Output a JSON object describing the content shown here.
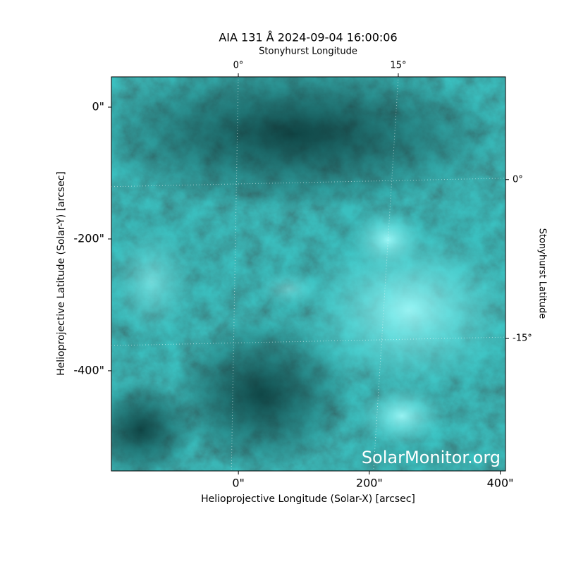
{
  "chart_data": {
    "type": "image",
    "title": "AIA 131 Å 2024-09-04 16:00:06",
    "x_label": "Helioprojective Longitude (Solar-X) [arcsec]",
    "y_label": "Helioprojective Latitude (Solar-Y) [arcsec]",
    "x2_label": "Stonyhurst Longitude",
    "y2_label": "Stonyhurst Latitude",
    "watermark": "SolarMonitor.org",
    "xlim": [
      -194,
      408
    ],
    "ylim": [
      -552,
      46
    ],
    "xticks": [
      {
        "value": 0,
        "label": "0\""
      },
      {
        "value": 200,
        "label": "200\""
      },
      {
        "value": 400,
        "label": "400\""
      }
    ],
    "yticks": [
      {
        "value": 0,
        "label": "0\""
      },
      {
        "value": -200,
        "label": "-200\""
      },
      {
        "value": -400,
        "label": "-400\""
      }
    ],
    "x2lim": [
      -11.9,
      25.05
    ],
    "x2ticks": [
      {
        "value": 0,
        "label": "0°"
      },
      {
        "value": 15,
        "label": "15°"
      }
    ],
    "y2lim": [
      -27.5,
      9.7
    ],
    "y2ticks": [
      {
        "value": 0,
        "label": "0°"
      },
      {
        "value": -15,
        "label": "-15°"
      }
    ],
    "grid": true
  }
}
